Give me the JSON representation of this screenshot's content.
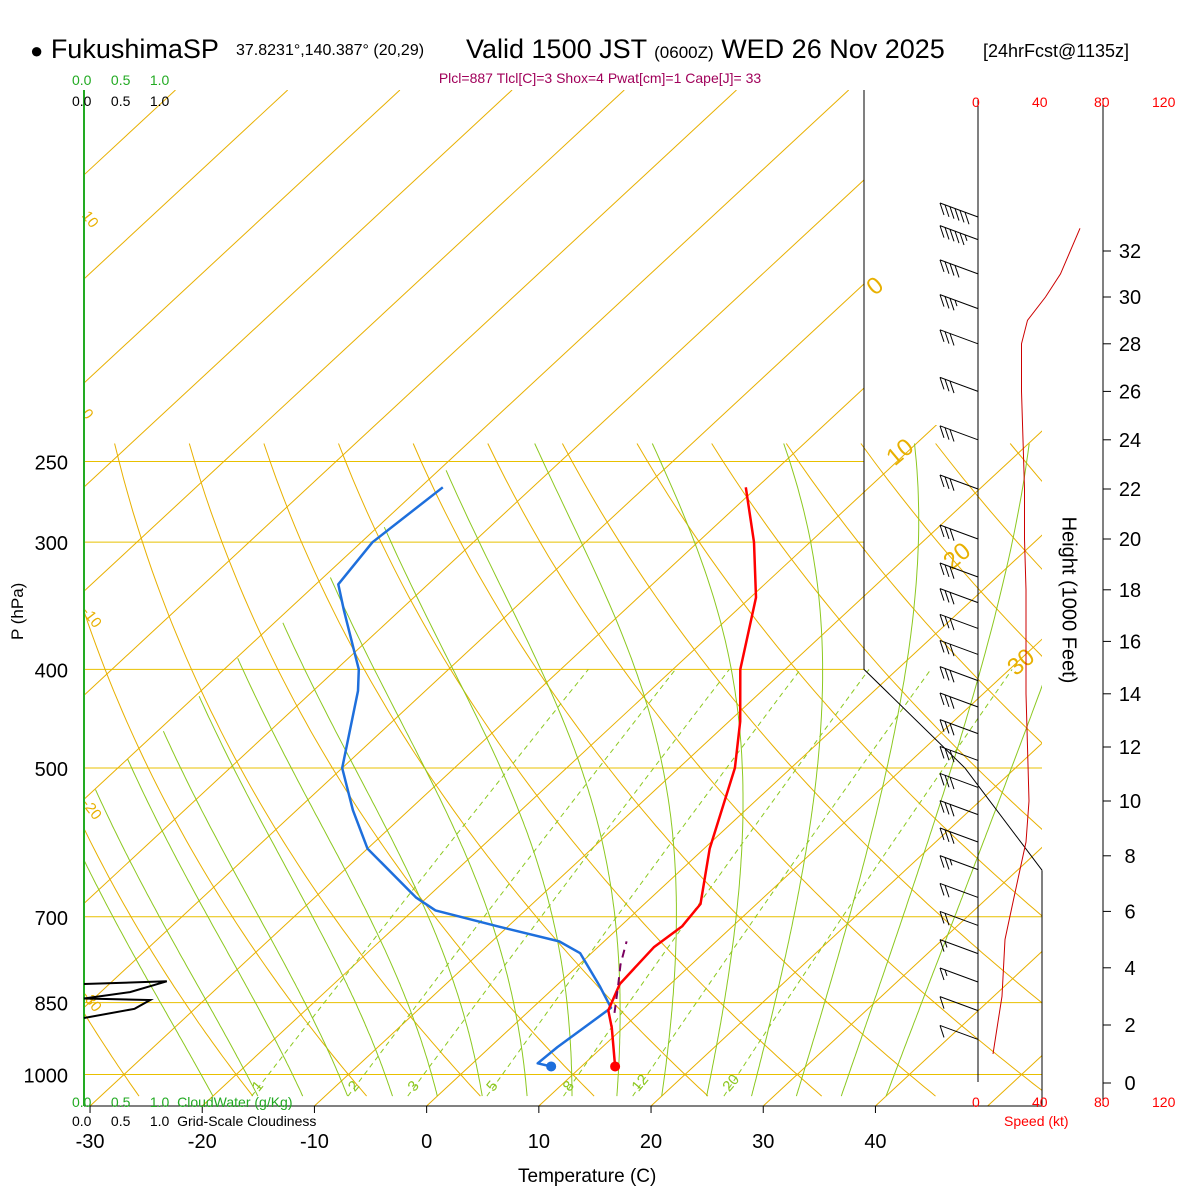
{
  "header": {
    "bullet": "●",
    "station": "FukushimaSP",
    "coords": "37.8231°,140.387° (20,29)",
    "valid_label": "Valid 1500 JST",
    "utc": "(0600Z)",
    "date": "WED 26 Nov 2025",
    "forecast": "[24hrFcst@1135z]"
  },
  "indices_line": "Plcl=887 Tlcl[C]=3 Shox=4 Pwat[cm]=1 Cape[J]= 33",
  "cloud_scale": {
    "top_green": [
      "0.0",
      "0.5",
      "1.0"
    ],
    "top_black": [
      "0.0",
      "0.5",
      "1.0"
    ],
    "bottom_green": [
      "0.0",
      "0.5",
      "1.0"
    ],
    "bottom_black": [
      "0.0",
      "0.5",
      "1.0"
    ],
    "cloudwater_label": "CloudWater (g/Kg)",
    "cloudiness_label": "Grid-Scale Cloudiness"
  },
  "speed_scale": {
    "ticks": [
      "0",
      "40",
      "80",
      "120"
    ],
    "label": "Speed (kt)"
  },
  "colors": {
    "temperature": "#ff0000",
    "dewpoint": "#1e6fdc",
    "isotherm": "#e8b000",
    "dry_adiabat": "#e8b000",
    "moist_adiabat": "#8cc820",
    "mixing_ratio": "#8cc820",
    "isobar": "#e8c000",
    "parcel": "#7a0060",
    "cloudwater": "#22aa22",
    "index_text": "#a0005a"
  },
  "chart_data": {
    "type": "skew-t",
    "xlabel": "Temperature (C)",
    "ylabel": "P (hPa)",
    "right_axis_label": "Height (1000 Feet)",
    "x_ticks": [
      -30,
      -20,
      -10,
      0,
      10,
      20,
      30,
      40
    ],
    "pressure_ticks": [
      250,
      300,
      400,
      500,
      700,
      850,
      1000
    ],
    "height_ticks_kft": [
      0,
      2,
      4,
      6,
      8,
      10,
      12,
      14,
      16,
      18,
      20,
      22,
      24,
      26,
      28,
      30,
      32
    ],
    "isotherm_labels": [
      "10",
      "0",
      "-10",
      "-20",
      "-30"
    ],
    "dry_adiabat_labels": [
      "0",
      "10",
      "20",
      "30"
    ],
    "mixing_ratio_labels": [
      "1",
      "2",
      "3",
      "5",
      "8",
      "12",
      "20"
    ],
    "temperature": [
      {
        "p": 982,
        "t": 13.0
      },
      {
        "p": 900,
        "t": 9.0
      },
      {
        "p": 865,
        "t": 7.0
      },
      {
        "p": 815,
        "t": 5.5
      },
      {
        "p": 750,
        "t": 5.0
      },
      {
        "p": 715,
        "t": 5.5
      },
      {
        "p": 680,
        "t": 5.0
      },
      {
        "p": 600,
        "t": 0.5
      },
      {
        "p": 500,
        "t": -5.0
      },
      {
        "p": 450,
        "t": -9.0
      },
      {
        "p": 400,
        "t": -14.0
      },
      {
        "p": 340,
        "t": -19.5
      },
      {
        "p": 300,
        "t": -25.0
      },
      {
        "p": 265,
        "t": -31.0
      }
    ],
    "dewpoint": [
      {
        "p": 982,
        "t": 7.3
      },
      {
        "p": 975,
        "t": 5.8
      },
      {
        "p": 940,
        "t": 6.0
      },
      {
        "p": 900,
        "t": 6.5
      },
      {
        "p": 860,
        "t": 7.0
      },
      {
        "p": 820,
        "t": 4.0
      },
      {
        "p": 760,
        "t": -1.0
      },
      {
        "p": 740,
        "t": -4.0
      },
      {
        "p": 715,
        "t": -11.0
      },
      {
        "p": 690,
        "t": -18.0
      },
      {
        "p": 670,
        "t": -21.0
      },
      {
        "p": 600,
        "t": -30.0
      },
      {
        "p": 550,
        "t": -35.0
      },
      {
        "p": 500,
        "t": -40.0
      },
      {
        "p": 420,
        "t": -46.0
      },
      {
        "p": 400,
        "t": -48.0
      },
      {
        "p": 350,
        "t": -55.0
      },
      {
        "p": 330,
        "t": -58.0
      },
      {
        "p": 300,
        "t": -59.0
      },
      {
        "p": 265,
        "t": -58.0
      }
    ],
    "parcel": [
      {
        "p": 870,
        "t": 7.8
      },
      {
        "p": 820,
        "t": 5.6
      },
      {
        "p": 780,
        "t": 3.7
      },
      {
        "p": 740,
        "t": 2.0
      }
    ],
    "surface": {
      "p": 982,
      "t": 13.0,
      "td": 7.3
    },
    "wind_speed_profile": [
      {
        "h": 1.0,
        "kt": 10
      },
      {
        "h": 2.0,
        "kt": 13
      },
      {
        "h": 3.0,
        "kt": 16
      },
      {
        "h": 4.0,
        "kt": 17
      },
      {
        "h": 5.0,
        "kt": 18
      },
      {
        "h": 5.5,
        "kt": 20
      },
      {
        "h": 6.5,
        "kt": 24
      },
      {
        "h": 7.5,
        "kt": 28
      },
      {
        "h": 8.5,
        "kt": 32
      },
      {
        "h": 10,
        "kt": 34
      },
      {
        "h": 12,
        "kt": 33
      },
      {
        "h": 14,
        "kt": 32
      },
      {
        "h": 16,
        "kt": 32
      },
      {
        "h": 18,
        "kt": 32
      },
      {
        "h": 20,
        "kt": 31
      },
      {
        "h": 22,
        "kt": 31
      },
      {
        "h": 24,
        "kt": 30
      },
      {
        "h": 26,
        "kt": 29
      },
      {
        "h": 28,
        "kt": 29
      },
      {
        "h": 29,
        "kt": 33
      },
      {
        "h": 30,
        "kt": 45
      },
      {
        "h": 31,
        "kt": 55
      },
      {
        "h": 33,
        "kt": 68
      }
    ],
    "barb_heights_kft": [
      1.5,
      2.5,
      3.5,
      4.5,
      5.5,
      6.5,
      7.5,
      8.5,
      9.5,
      10.5,
      11.5,
      12.5,
      13.5,
      14.5,
      15.5,
      16.5,
      17.5,
      18.5,
      20,
      22,
      24,
      26,
      28,
      29.5,
      31,
      32.5,
      33.5
    ],
    "barb_speeds_kt": [
      10,
      12,
      15,
      18,
      20,
      22,
      25,
      30,
      30,
      32,
      32,
      30,
      30,
      30,
      30,
      30,
      30,
      30,
      30,
      30,
      30,
      30,
      30,
      35,
      40,
      55,
      60
    ],
    "cloudiness_profile": [
      {
        "p": 815,
        "c": 0.0
      },
      {
        "p": 810,
        "c": 0.9
      },
      {
        "p": 830,
        "c": 0.5
      },
      {
        "p": 842,
        "c": 0.0
      },
      {
        "p": 845,
        "c": 0.72
      },
      {
        "p": 862,
        "c": 0.55
      },
      {
        "p": 880,
        "c": 0.0
      }
    ]
  }
}
